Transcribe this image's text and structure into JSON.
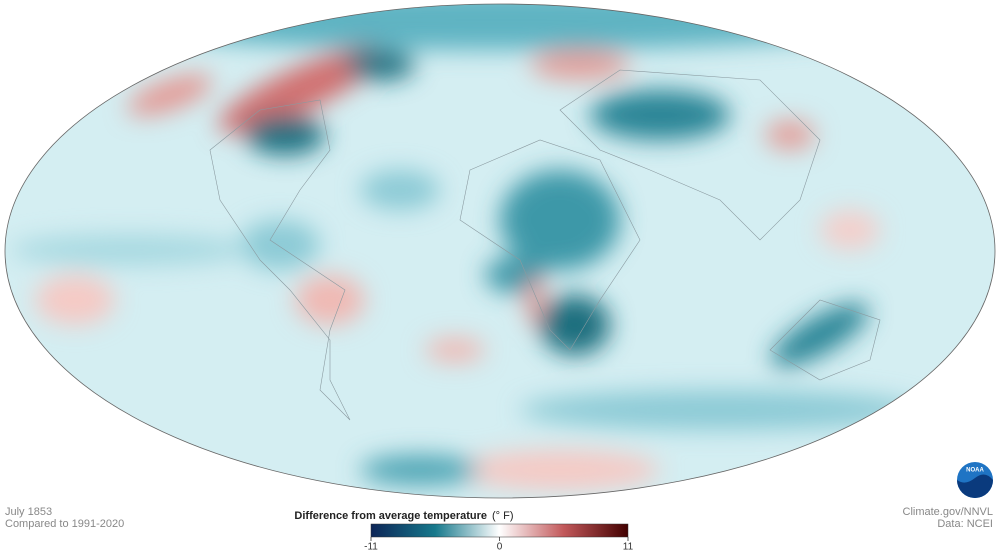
{
  "header": {
    "date": "July 1853",
    "baseline": "Compared to 1991-2020"
  },
  "legend": {
    "title": "Difference from average temperature",
    "unit": "(° F)",
    "ticks": [
      -11,
      0,
      11
    ]
  },
  "credits": {
    "source": "Climate.gov/NNVL",
    "data": "Data: NCEI",
    "logo": "NOAA"
  }
}
